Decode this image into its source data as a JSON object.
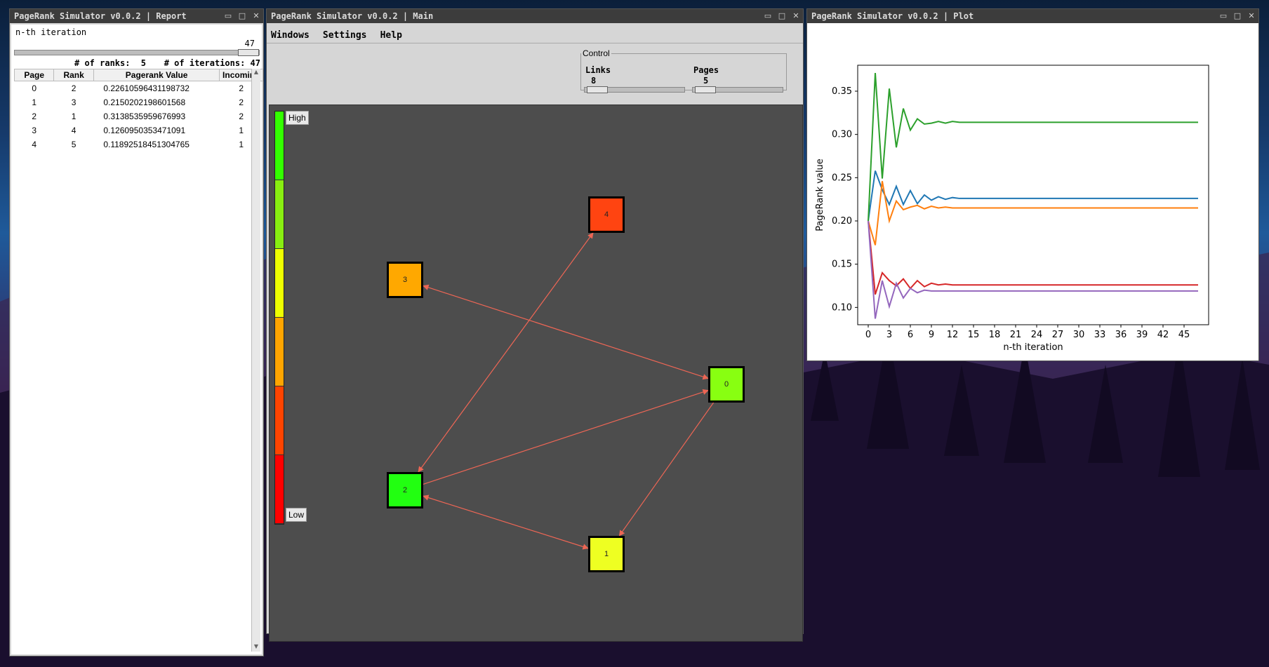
{
  "report": {
    "title": "PageRank Simulator v0.0.2 | Report",
    "iteration_label": "n-th iteration",
    "iteration_value": "47",
    "ranks_label": "# of ranks:",
    "ranks_value": "5",
    "iterations_label": "# of iterations:",
    "iterations_value": "47",
    "columns": [
      "Page",
      "Rank",
      "Pagerank Value",
      "Incoming"
    ],
    "rows": [
      [
        "0",
        "2",
        "0.22610596431198732",
        "2"
      ],
      [
        "1",
        "3",
        "0.2150202198601568",
        "2"
      ],
      [
        "2",
        "1",
        "0.3138535959676993",
        "2"
      ],
      [
        "3",
        "4",
        "0.1260950353471091",
        "1"
      ],
      [
        "4",
        "5",
        "0.11892518451304765",
        "1"
      ]
    ]
  },
  "main": {
    "title": "PageRank Simulator v0.0.2 | Main",
    "menu": [
      "Windows",
      "Settings",
      "Help"
    ],
    "control": {
      "legend": "Control",
      "links_label": "Links",
      "links_value": "8",
      "links_fraction": 0.2,
      "pages_label": "Pages",
      "pages_value": "5",
      "pages_fraction": 0.2
    },
    "scale": {
      "high_label": "High",
      "low_label": "Low",
      "colors": [
        "#33ff00",
        "#88ee11",
        "#eeff00",
        "#ffa500",
        "#ff4400",
        "#ff0000"
      ]
    },
    "nodes": [
      {
        "id": "0",
        "color": "#88ff11"
      },
      {
        "id": "1",
        "color": "#eeff22"
      },
      {
        "id": "2",
        "color": "#22ff11"
      },
      {
        "id": "3",
        "color": "#ffa800"
      },
      {
        "id": "4",
        "color": "#ff4411"
      }
    ],
    "edge_color": "#ee6655"
  },
  "plot": {
    "title": "PageRank Simulator v0.0.2 | Plot",
    "chart_data": {
      "type": "line",
      "xlabel": "n-th iteration",
      "ylabel": "PageRank value",
      "xlim": [
        -1.5,
        48.5
      ],
      "ylim": [
        0.08,
        0.38
      ],
      "xticks": [
        0,
        3,
        6,
        9,
        12,
        15,
        18,
        21,
        24,
        27,
        30,
        33,
        36,
        39,
        42,
        45
      ],
      "yticks": [
        0.1,
        0.15,
        0.2,
        0.25,
        0.3,
        0.35
      ],
      "grid": false,
      "series": [
        {
          "color": "#1f77b4",
          "x": [
            0,
            1,
            2,
            3,
            4,
            5,
            6,
            7,
            8,
            9,
            10,
            11,
            12,
            13,
            14,
            15,
            16,
            20,
            30,
            40,
            47
          ],
          "values": [
            0.2,
            0.258,
            0.236,
            0.219,
            0.24,
            0.219,
            0.235,
            0.22,
            0.23,
            0.224,
            0.228,
            0.225,
            0.227,
            0.226,
            0.226,
            0.226,
            0.226,
            0.226,
            0.226,
            0.226,
            0.226
          ]
        },
        {
          "color": "#ff7f0e",
          "x": [
            0,
            1,
            2,
            3,
            4,
            5,
            6,
            7,
            8,
            9,
            10,
            11,
            12,
            13,
            14,
            15,
            16,
            20,
            30,
            40,
            47
          ],
          "values": [
            0.2,
            0.172,
            0.246,
            0.2,
            0.223,
            0.213,
            0.216,
            0.218,
            0.214,
            0.217,
            0.215,
            0.216,
            0.215,
            0.215,
            0.215,
            0.215,
            0.215,
            0.215,
            0.215,
            0.215,
            0.215
          ]
        },
        {
          "color": "#2ca02c",
          "x": [
            0,
            1,
            2,
            3,
            4,
            5,
            6,
            7,
            8,
            9,
            10,
            11,
            12,
            13,
            14,
            15,
            16,
            20,
            30,
            40,
            47
          ],
          "values": [
            0.2,
            0.371,
            0.249,
            0.353,
            0.285,
            0.33,
            0.305,
            0.318,
            0.312,
            0.313,
            0.315,
            0.313,
            0.315,
            0.314,
            0.314,
            0.314,
            0.314,
            0.314,
            0.314,
            0.314,
            0.314
          ]
        },
        {
          "color": "#d62728",
          "x": [
            0,
            1,
            2,
            3,
            4,
            5,
            6,
            7,
            8,
            9,
            10,
            11,
            12,
            13,
            14,
            15,
            16,
            20,
            30,
            40,
            47
          ],
          "values": [
            0.2,
            0.115,
            0.14,
            0.131,
            0.125,
            0.133,
            0.122,
            0.131,
            0.124,
            0.128,
            0.126,
            0.127,
            0.126,
            0.126,
            0.126,
            0.126,
            0.126,
            0.126,
            0.126,
            0.126,
            0.126
          ]
        },
        {
          "color": "#9467bd",
          "x": [
            0,
            1,
            2,
            3,
            4,
            5,
            6,
            7,
            8,
            9,
            10,
            11,
            12,
            13,
            14,
            15,
            16,
            20,
            30,
            40,
            47
          ],
          "values": [
            0.2,
            0.087,
            0.131,
            0.101,
            0.128,
            0.111,
            0.122,
            0.117,
            0.12,
            0.119,
            0.119,
            0.119,
            0.119,
            0.119,
            0.119,
            0.119,
            0.119,
            0.119,
            0.119,
            0.119,
            0.119
          ]
        }
      ]
    }
  }
}
